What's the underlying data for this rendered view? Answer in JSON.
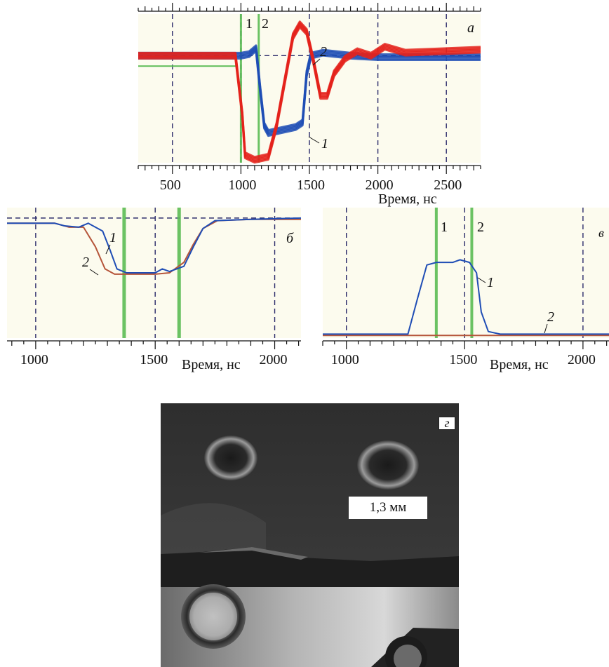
{
  "panels": {
    "a": {
      "letter": "а"
    },
    "b": {
      "letter": "б"
    },
    "c": {
      "letter": "в"
    },
    "d": {
      "letter": "г",
      "scale_label": "1,3 мм"
    }
  },
  "colors": {
    "background": "#fcfbee",
    "grid": "#2a2a6a",
    "series_1": "#1f4db5",
    "series_2": "#e4221b",
    "series_2_thin": "#b5553a",
    "cursor": "#5cbc55"
  },
  "chart_data": [
    {
      "panel": "а",
      "type": "line",
      "xlabel": "Время, нс",
      "xlim": [
        250,
        2750
      ],
      "x_ticks": [
        500,
        1000,
        1500,
        2000,
        2500
      ],
      "ylim": [
        0,
        1
      ],
      "cursors": [
        {
          "label": "1",
          "x": 1000
        },
        {
          "label": "2",
          "x": 1130
        }
      ],
      "series": [
        {
          "name": "1",
          "values": [
            [
              250,
              0.72
            ],
            [
              1000,
              0.72
            ],
            [
              1060,
              0.73
            ],
            [
              1110,
              0.77
            ],
            [
              1140,
              0.5
            ],
            [
              1170,
              0.25
            ],
            [
              1200,
              0.2
            ],
            [
              1300,
              0.22
            ],
            [
              1400,
              0.24
            ],
            [
              1450,
              0.27
            ],
            [
              1480,
              0.6
            ],
            [
              1510,
              0.72
            ],
            [
              1600,
              0.74
            ],
            [
              1800,
              0.72
            ],
            [
              2000,
              0.71
            ],
            [
              2750,
              0.71
            ]
          ]
        },
        {
          "name": "2",
          "values": [
            [
              250,
              0.72
            ],
            [
              960,
              0.72
            ],
            [
              1010,
              0.32
            ],
            [
              1030,
              0.05
            ],
            [
              1100,
              0.02
            ],
            [
              1200,
              0.04
            ],
            [
              1260,
              0.25
            ],
            [
              1320,
              0.55
            ],
            [
              1380,
              0.85
            ],
            [
              1430,
              0.93
            ],
            [
              1480,
              0.88
            ],
            [
              1530,
              0.68
            ],
            [
              1580,
              0.45
            ],
            [
              1630,
              0.45
            ],
            [
              1680,
              0.6
            ],
            [
              1760,
              0.7
            ],
            [
              1850,
              0.75
            ],
            [
              1950,
              0.72
            ],
            [
              2050,
              0.78
            ],
            [
              2200,
              0.74
            ],
            [
              2750,
              0.76
            ]
          ]
        }
      ]
    },
    {
      "panel": "б",
      "type": "line",
      "xlabel": "Время, нс",
      "xlim": [
        880,
        2110
      ],
      "x_ticks": [
        1000,
        1500,
        2000
      ],
      "ylim": [
        0,
        1
      ],
      "cursors": [
        {
          "x": 1370
        },
        {
          "x": 1600
        }
      ],
      "series": [
        {
          "name": "1",
          "values": [
            [
              880,
              0.88
            ],
            [
              1080,
              0.88
            ],
            [
              1120,
              0.86
            ],
            [
              1180,
              0.85
            ],
            [
              1220,
              0.88
            ],
            [
              1280,
              0.82
            ],
            [
              1310,
              0.68
            ],
            [
              1340,
              0.53
            ],
            [
              1380,
              0.5
            ],
            [
              1450,
              0.5
            ],
            [
              1500,
              0.5
            ],
            [
              1530,
              0.53
            ],
            [
              1560,
              0.51
            ],
            [
              1620,
              0.55
            ],
            [
              1660,
              0.7
            ],
            [
              1700,
              0.84
            ],
            [
              1750,
              0.9
            ],
            [
              1900,
              0.91
            ],
            [
              2110,
              0.92
            ]
          ]
        },
        {
          "name": "2",
          "values": [
            [
              880,
              0.88
            ],
            [
              1080,
              0.88
            ],
            [
              1140,
              0.85
            ],
            [
              1200,
              0.85
            ],
            [
              1250,
              0.7
            ],
            [
              1290,
              0.53
            ],
            [
              1330,
              0.49
            ],
            [
              1400,
              0.49
            ],
            [
              1500,
              0.49
            ],
            [
              1560,
              0.5
            ],
            [
              1620,
              0.58
            ],
            [
              1660,
              0.72
            ],
            [
              1700,
              0.84
            ],
            [
              1760,
              0.9
            ],
            [
              1900,
              0.91
            ],
            [
              2110,
              0.91
            ]
          ]
        }
      ]
    },
    {
      "panel": "в",
      "type": "line",
      "xlabel": "Время, нс",
      "xlim": [
        900,
        2110
      ],
      "x_ticks": [
        1000,
        1500,
        2000
      ],
      "ylim": [
        0,
        1
      ],
      "cursors": [
        {
          "label": "1",
          "x": 1380
        },
        {
          "label": "2",
          "x": 1530
        }
      ],
      "series": [
        {
          "name": "1",
          "values": [
            [
              900,
              0.03
            ],
            [
              1260,
              0.03
            ],
            [
              1300,
              0.3
            ],
            [
              1340,
              0.56
            ],
            [
              1380,
              0.58
            ],
            [
              1450,
              0.58
            ],
            [
              1480,
              0.6
            ],
            [
              1520,
              0.58
            ],
            [
              1550,
              0.5
            ],
            [
              1570,
              0.2
            ],
            [
              1600,
              0.05
            ],
            [
              1650,
              0.03
            ],
            [
              2110,
              0.03
            ]
          ]
        },
        {
          "name": "2",
          "values": [
            [
              900,
              0.02
            ],
            [
              2110,
              0.02
            ]
          ]
        }
      ]
    }
  ]
}
